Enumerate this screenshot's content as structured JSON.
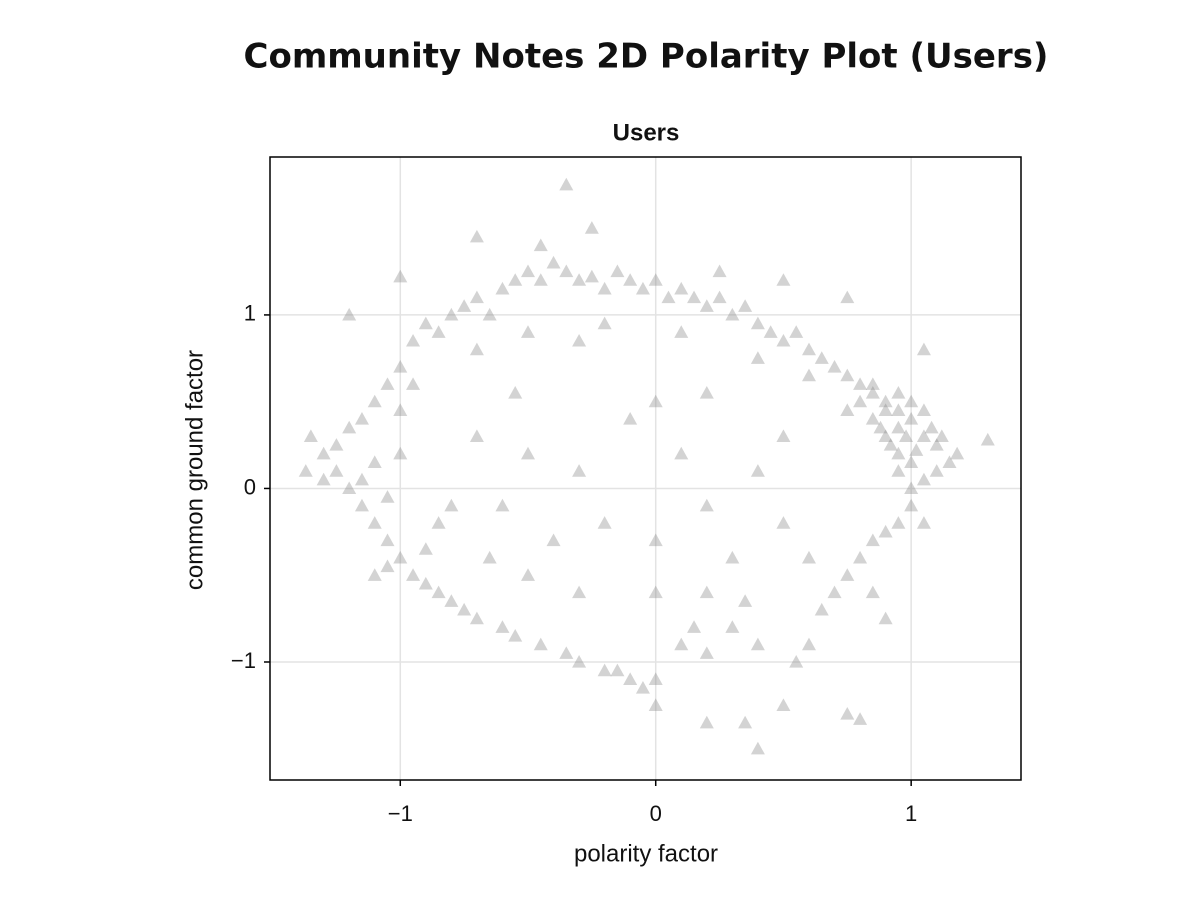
{
  "chart_data": {
    "type": "scatter",
    "title": "Community Notes 2D Polarity Plot (Users)",
    "subtitle": "Users",
    "x_label": "polarity factor",
    "y_label": "common ground factor",
    "color": "#808080",
    "marker": "triangle",
    "grid": true,
    "xlim": [
      -1.51,
      1.43
    ],
    "ylim": [
      -1.68,
      1.91
    ],
    "xticks": [
      {
        "value": -1,
        "label": "−1"
      },
      0,
      1
    ],
    "yticks": [
      {
        "value": -1,
        "label": "−1"
      },
      0,
      1
    ],
    "x": [
      -1.0,
      -0.95,
      -0.9,
      -0.85,
      -0.8,
      -0.75,
      -0.7,
      -0.65,
      -0.6,
      -0.55,
      -0.5,
      -0.45,
      -0.4,
      -0.35,
      -0.3,
      -0.25,
      -0.2,
      -0.15,
      -0.1,
      -0.05,
      0,
      0.05,
      0.1,
      0.15,
      0.2,
      0.25,
      0.3,
      0.35,
      0.4,
      0.45,
      0.5,
      0.55,
      0.6,
      0.65,
      0.7,
      0.75,
      0.8,
      0.85,
      0.9,
      0.95,
      -0.35,
      -0.7,
      -0.45,
      -0.25,
      0.25,
      0.5,
      0.75,
      1.05,
      -1.0,
      -1.2,
      -0.7,
      -0.5,
      -0.2,
      0.1,
      0.4,
      0.6,
      -0.3,
      0,
      -0.55,
      0.2,
      0.85,
      0.9,
      0.95,
      1.0,
      1.05,
      0.95,
      1.0,
      1.1,
      0.9,
      1.0,
      1.05,
      0.92,
      0.98,
      1.02,
      1.08,
      0.88,
      0.95,
      0.85,
      1.1,
      1.15,
      1.05,
      0.95,
      1.0,
      1.12,
      1.18,
      1.3,
      0.8,
      0.75,
      1.0,
      0.95,
      0.9,
      1.05,
      0.85,
      0.8,
      0.75,
      0.7,
      0.9,
      0.85,
      0.65,
      0.6,
      0.55,
      0.75,
      0.8,
      0.4,
      0.35,
      0.5,
      0.2,
      0.4,
      0.3,
      0.2,
      0.1,
      0,
      0,
      -0.05,
      -0.1,
      -0.15,
      -0.2,
      -0.3,
      -0.35,
      -0.45,
      -0.55,
      -0.6,
      -0.7,
      -0.75,
      -0.8,
      -0.85,
      -0.9,
      -0.95,
      -1.0,
      -1.05,
      -1.1,
      -1.15,
      -1.2,
      -1.25,
      -1.3,
      -1.35,
      -1.25,
      -1.2,
      -1.15,
      -1.1,
      -1.05,
      -1.1,
      -1.0,
      -1.05,
      -1.15,
      -1.3,
      -1.37,
      -1.0,
      -0.95,
      -1.05,
      -0.9,
      -0.85,
      -1.1,
      -0.7,
      -0.5,
      -0.6,
      -0.4,
      -0.3,
      -0.2,
      0,
      0.1,
      0.2,
      0.3,
      0.4,
      0.5,
      -0.5,
      -0.3,
      0,
      0.2,
      0.5,
      -0.8,
      0.6,
      -0.1,
      0.35,
      -0.65,
      0.15
    ],
    "values": [
      0.7,
      0.85,
      0.95,
      0.9,
      1.0,
      1.05,
      1.1,
      1.0,
      1.15,
      1.2,
      1.25,
      1.2,
      1.3,
      1.25,
      1.2,
      1.22,
      1.15,
      1.25,
      1.2,
      1.15,
      1.2,
      1.1,
      1.15,
      1.1,
      1.05,
      1.1,
      1.0,
      1.05,
      0.95,
      0.9,
      0.85,
      0.9,
      0.8,
      0.75,
      0.7,
      0.65,
      0.6,
      0.55,
      0.5,
      0.45,
      1.75,
      1.45,
      1.4,
      1.5,
      1.25,
      1.2,
      1.1,
      0.8,
      1.22,
      1.0,
      0.8,
      0.9,
      0.95,
      0.9,
      0.75,
      0.65,
      0.85,
      0.5,
      0.55,
      0.55,
      0.4,
      0.3,
      0.35,
      0.4,
      0.3,
      0.2,
      0.15,
      0.25,
      0.45,
      0.5,
      0.45,
      0.25,
      0.3,
      0.22,
      0.35,
      0.35,
      0.55,
      0.6,
      0.1,
      0.15,
      0.05,
      0.1,
      0.0,
      0.3,
      0.2,
      0.28,
      0.5,
      0.45,
      -0.1,
      -0.2,
      -0.25,
      -0.2,
      -0.3,
      -0.4,
      -0.5,
      -0.6,
      -0.75,
      -0.6,
      -0.7,
      -0.9,
      -1.0,
      -1.3,
      -1.33,
      -1.5,
      -1.35,
      -1.25,
      -1.35,
      -0.9,
      -0.8,
      -0.95,
      -0.9,
      -1.1,
      -1.25,
      -1.15,
      -1.1,
      -1.05,
      -1.05,
      -1.0,
      -0.95,
      -0.9,
      -0.85,
      -0.8,
      -0.75,
      -0.7,
      -0.65,
      -0.6,
      -0.55,
      -0.5,
      -0.4,
      -0.3,
      -0.2,
      -0.1,
      0,
      0.1,
      0.2,
      0.3,
      0.25,
      0.35,
      0.4,
      0.5,
      0.6,
      0.15,
      0.2,
      -0.05,
      0.05,
      0.05,
      0.1,
      0.45,
      0.6,
      -0.45,
      -0.35,
      -0.2,
      -0.5,
      0.3,
      0.2,
      -0.1,
      -0.3,
      0.1,
      -0.2,
      -0.3,
      0.2,
      -0.1,
      -0.4,
      0.1,
      -0.2,
      -0.5,
      -0.6,
      -0.6,
      -0.6,
      0.3,
      -0.1,
      -0.4,
      0.4,
      -0.65,
      -0.4,
      -0.8
    ]
  }
}
